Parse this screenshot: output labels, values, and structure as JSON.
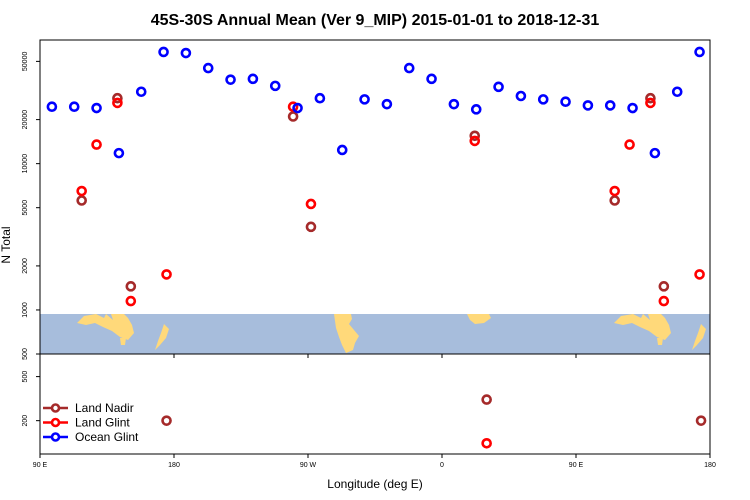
{
  "chart_data": {
    "type": "scatter",
    "title": "45S-30S Annual Mean (Ver 9_MIP)   2015-01-01 to 2018-12-31",
    "xlabel": "Longitude (deg E)",
    "ylabel": "N Total",
    "x_ticks": [
      {
        "value": 90,
        "label": "90 E"
      },
      {
        "value": 180,
        "label": "180"
      },
      {
        "value": 270,
        "label": "90 W"
      },
      {
        "value": 360,
        "label": "0"
      },
      {
        "value": 450,
        "label": "90 E"
      },
      {
        "value": 540,
        "label": "180"
      }
    ],
    "xlim": [
      90,
      540
    ],
    "upper_panel": {
      "yscale": "log",
      "ylim": [
        500,
        70000
      ],
      "y_ticks": [
        {
          "value": 500,
          "label": "500"
        },
        {
          "value": 1000,
          "label": "1000"
        },
        {
          "value": 2000,
          "label": "2000"
        },
        {
          "value": 5000,
          "label": "5000"
        },
        {
          "value": 10000,
          "label": "10000"
        },
        {
          "value": 20000,
          "label": "20000"
        },
        {
          "value": 50000,
          "label": "50000"
        }
      ]
    },
    "lower_panel": {
      "yscale": "log",
      "ylim": [
        100,
        800
      ],
      "y_ticks": [
        {
          "value": 200,
          "label": "200"
        },
        {
          "value": 500,
          "label": "500"
        }
      ]
    },
    "legend": {
      "placement": "bottom-left",
      "entries": [
        "Land Nadir",
        "Land Glint",
        "Ocean Glint"
      ]
    },
    "series": [
      {
        "name": "Land Nadir",
        "color": "#a52a2a",
        "points": [
          {
            "x": 118,
            "y": 5600
          },
          {
            "x": 142,
            "y": 28000
          },
          {
            "x": 151,
            "y": 1450
          },
          {
            "x": 260,
            "y": 21000
          },
          {
            "x": 272,
            "y": 3700
          },
          {
            "x": 382,
            "y": 15500
          },
          {
            "x": 476,
            "y": 5600
          },
          {
            "x": 500,
            "y": 28000
          },
          {
            "x": 509,
            "y": 1450
          }
        ],
        "lower_points": [
          {
            "x": 175,
            "y": 200
          },
          {
            "x": 390,
            "y": 310
          },
          {
            "x": 534,
            "y": 200
          }
        ]
      },
      {
        "name": "Land Glint",
        "color": "#ff0000",
        "points": [
          {
            "x": 118,
            "y": 6500
          },
          {
            "x": 128,
            "y": 13500
          },
          {
            "x": 142,
            "y": 26000
          },
          {
            "x": 151,
            "y": 1150
          },
          {
            "x": 175,
            "y": 1750
          },
          {
            "x": 260,
            "y": 24500
          },
          {
            "x": 272,
            "y": 5300
          },
          {
            "x": 382,
            "y": 14300
          },
          {
            "x": 476,
            "y": 6500
          },
          {
            "x": 486,
            "y": 13500
          },
          {
            "x": 500,
            "y": 26000
          },
          {
            "x": 509,
            "y": 1150
          },
          {
            "x": 533,
            "y": 1750
          }
        ],
        "lower_points": [
          {
            "x": 390,
            "y": 125
          }
        ]
      },
      {
        "name": "Ocean Glint",
        "color": "#0000ff",
        "points": [
          {
            "x": 98,
            "y": 24500
          },
          {
            "x": 113,
            "y": 24500
          },
          {
            "x": 128,
            "y": 24000
          },
          {
            "x": 143,
            "y": 11800
          },
          {
            "x": 158,
            "y": 31000
          },
          {
            "x": 173,
            "y": 58000
          },
          {
            "x": 188,
            "y": 57000
          },
          {
            "x": 203,
            "y": 45000
          },
          {
            "x": 218,
            "y": 37500
          },
          {
            "x": 233,
            "y": 38000
          },
          {
            "x": 248,
            "y": 34000
          },
          {
            "x": 263,
            "y": 24000
          },
          {
            "x": 278,
            "y": 28000
          },
          {
            "x": 293,
            "y": 12400
          },
          {
            "x": 308,
            "y": 27500
          },
          {
            "x": 323,
            "y": 25500
          },
          {
            "x": 338,
            "y": 45000
          },
          {
            "x": 353,
            "y": 38000
          },
          {
            "x": 368,
            "y": 25500
          },
          {
            "x": 383,
            "y": 23500
          },
          {
            "x": 398,
            "y": 33500
          },
          {
            "x": 413,
            "y": 29000
          },
          {
            "x": 428,
            "y": 27500
          },
          {
            "x": 443,
            "y": 26500
          },
          {
            "x": 458,
            "y": 25000
          },
          {
            "x": 473,
            "y": 25000
          },
          {
            "x": 488,
            "y": 24000
          },
          {
            "x": 503,
            "y": 11800
          },
          {
            "x": 518,
            "y": 31000
          },
          {
            "x": 533,
            "y": 58000
          }
        ]
      }
    ],
    "colors": {
      "ocean_band": "#a7bddc",
      "land_fill": "#ffd97a"
    }
  }
}
